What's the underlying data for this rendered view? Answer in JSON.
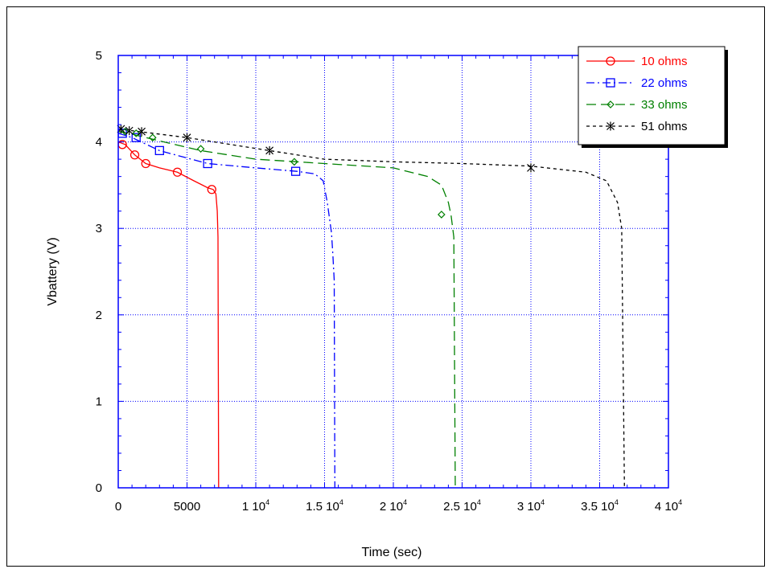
{
  "chart_data": {
    "type": "line",
    "xlabel": "Time (sec)",
    "ylabel": "Vbattery (V)",
    "xlim": [
      0,
      40000
    ],
    "ylim": [
      0,
      5
    ],
    "grid": true,
    "legend_position": "top-right",
    "x_ticks": [
      {
        "value": 0,
        "base": "0",
        "sup": ""
      },
      {
        "value": 5000,
        "base": "5000",
        "sup": ""
      },
      {
        "value": 10000,
        "base": "1 10",
        "sup": "4"
      },
      {
        "value": 15000,
        "base": "1.5 10",
        "sup": "4"
      },
      {
        "value": 20000,
        "base": "2 10",
        "sup": "4"
      },
      {
        "value": 25000,
        "base": "2.5 10",
        "sup": "4"
      },
      {
        "value": 30000,
        "base": "3 10",
        "sup": "4"
      },
      {
        "value": 35000,
        "base": "3.5 10",
        "sup": "4"
      },
      {
        "value": 40000,
        "base": "4 10",
        "sup": "4"
      }
    ],
    "y_ticks": [
      {
        "value": 0,
        "label": "0"
      },
      {
        "value": 1,
        "label": "1"
      },
      {
        "value": 2,
        "label": "2"
      },
      {
        "value": 3,
        "label": "3"
      },
      {
        "value": 4,
        "label": "4"
      },
      {
        "value": 5,
        "label": "5"
      }
    ],
    "series": [
      {
        "name": "10 ohms",
        "color": "#ff0000",
        "dash": "",
        "marker": "circle",
        "points": [
          [
            0,
            4.0
          ],
          [
            500,
            3.97
          ],
          [
            1200,
            3.85
          ],
          [
            2000,
            3.75
          ],
          [
            3000,
            3.7
          ],
          [
            4300,
            3.65
          ],
          [
            5500,
            3.55
          ],
          [
            6500,
            3.47
          ],
          [
            6900,
            3.45
          ],
          [
            7100,
            3.4
          ],
          [
            7200,
            3.2
          ],
          [
            7250,
            2.9
          ],
          [
            7300,
            0
          ]
        ],
        "marker_points": [
          [
            300,
            3.97
          ],
          [
            1200,
            3.85
          ],
          [
            2000,
            3.75
          ],
          [
            4300,
            3.65
          ],
          [
            6800,
            3.45
          ]
        ]
      },
      {
        "name": "22 ohms",
        "color": "#0000ff",
        "dash": "10,4,2,4",
        "marker": "square",
        "points": [
          [
            0,
            4.1
          ],
          [
            1000,
            4.05
          ],
          [
            3000,
            3.9
          ],
          [
            6500,
            3.75
          ],
          [
            10000,
            3.7
          ],
          [
            13000,
            3.66
          ],
          [
            14300,
            3.63
          ],
          [
            14900,
            3.55
          ],
          [
            15200,
            3.3
          ],
          [
            15500,
            2.95
          ],
          [
            15600,
            2.7
          ],
          [
            15700,
            2.4
          ],
          [
            15750,
            0
          ]
        ],
        "marker_points": [
          [
            300,
            4.1
          ],
          [
            1300,
            4.05
          ],
          [
            3000,
            3.9
          ],
          [
            6500,
            3.75
          ],
          [
            12900,
            3.66
          ]
        ]
      },
      {
        "name": "33 ohms",
        "color": "#008000",
        "dash": "12,6",
        "marker": "diamond",
        "points": [
          [
            0,
            4.12
          ],
          [
            700,
            4.1
          ],
          [
            2000,
            4.05
          ],
          [
            6000,
            3.9
          ],
          [
            10000,
            3.8
          ],
          [
            13000,
            3.77
          ],
          [
            16000,
            3.74
          ],
          [
            20000,
            3.7
          ],
          [
            22500,
            3.6
          ],
          [
            23500,
            3.5
          ],
          [
            24000,
            3.3
          ],
          [
            24200,
            3.15
          ],
          [
            24400,
            2.9
          ],
          [
            24500,
            0
          ]
        ],
        "marker_points": [
          [
            500,
            4.12
          ],
          [
            1300,
            4.1
          ],
          [
            2500,
            4.05
          ],
          [
            6000,
            3.92
          ],
          [
            12800,
            3.77
          ],
          [
            23500,
            3.16
          ]
        ]
      },
      {
        "name": "51 ohms",
        "color": "#000000",
        "dash": "4,4",
        "marker": "x",
        "points": [
          [
            0,
            4.15
          ],
          [
            1500,
            4.12
          ],
          [
            5000,
            4.05
          ],
          [
            11000,
            3.9
          ],
          [
            15000,
            3.8
          ],
          [
            20000,
            3.77
          ],
          [
            25000,
            3.75
          ],
          [
            30000,
            3.72
          ],
          [
            34000,
            3.65
          ],
          [
            35500,
            3.55
          ],
          [
            36300,
            3.3
          ],
          [
            36600,
            3.0
          ],
          [
            36800,
            0
          ]
        ],
        "marker_points": [
          [
            200,
            4.15
          ],
          [
            800,
            4.13
          ],
          [
            1700,
            4.12
          ],
          [
            5000,
            4.05
          ],
          [
            11000,
            3.9
          ],
          [
            30000,
            3.7
          ]
        ]
      }
    ]
  }
}
